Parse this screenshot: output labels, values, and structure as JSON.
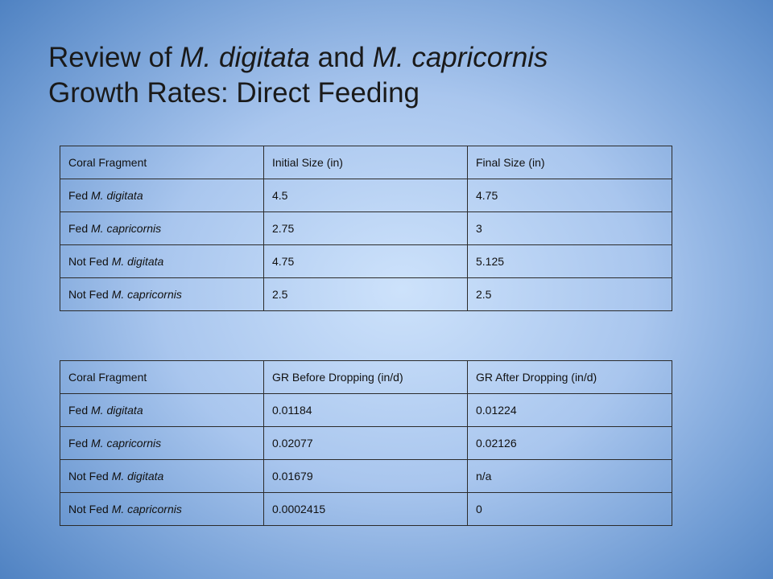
{
  "title": {
    "line1": {
      "prefix": "Review of ",
      "species1": "M. digitata",
      "middle": " and ",
      "species2": "M. capricornis"
    },
    "line2": "Growth Rates: Direct Feeding"
  },
  "table1": {
    "headers": [
      "Coral Fragment",
      "Initial Size (in)",
      "Final Size (in)"
    ],
    "rows": [
      {
        "fragment": {
          "prefix": "Fed ",
          "species": "M. digitata"
        },
        "v1": "4.5",
        "v2": "4.75"
      },
      {
        "fragment": {
          "prefix": "Fed ",
          "species": "M. capricornis"
        },
        "v1": "2.75",
        "v2": "3"
      },
      {
        "fragment": {
          "prefix": "Not Fed ",
          "species": "M. digitata"
        },
        "v1": "4.75",
        "v2": "5.125"
      },
      {
        "fragment": {
          "prefix": "Not Fed ",
          "species": "M. capricornis"
        },
        "v1": "2.5",
        "v2": "2.5"
      }
    ]
  },
  "table2": {
    "headers": [
      "Coral Fragment",
      "GR Before Dropping (in/d)",
      "GR After Dropping (in/d)"
    ],
    "rows": [
      {
        "fragment": {
          "prefix": "Fed ",
          "species": "M. digitata"
        },
        "v1": "0.01184",
        "v2": "0.01224"
      },
      {
        "fragment": {
          "prefix": "Fed ",
          "species": "M. capricornis"
        },
        "v1": "0.02077",
        "v2": "0.02126"
      },
      {
        "fragment": {
          "prefix": "Not Fed ",
          "species": "M. digitata"
        },
        "v1": "0.01679",
        "v2": "n/a"
      },
      {
        "fragment": {
          "prefix": "Not Fed ",
          "species": "M. capricornis"
        },
        "v1": "0.0002415",
        "v2": "0"
      }
    ]
  }
}
